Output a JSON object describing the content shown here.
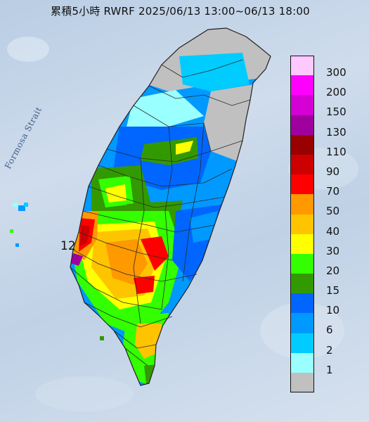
{
  "title": "累積5小時 RWRF 2025/06/13 13:00~06/13 18:00",
  "strait_label": "Formosa Strait",
  "max_marker": "12",
  "legend": [
    {
      "label": "300",
      "color": "#ffc8ff"
    },
    {
      "label": "200",
      "color": "#ff00ff"
    },
    {
      "label": "150",
      "color": "#d400d4"
    },
    {
      "label": "130",
      "color": "#a0009e"
    },
    {
      "label": "110",
      "color": "#990000"
    },
    {
      "label": "90",
      "color": "#cc0000"
    },
    {
      "label": "70",
      "color": "#ff0000"
    },
    {
      "label": "50",
      "color": "#ff9900"
    },
    {
      "label": "40",
      "color": "#ffc400"
    },
    {
      "label": "30",
      "color": "#ffff00"
    },
    {
      "label": "20",
      "color": "#33ff00"
    },
    {
      "label": "15",
      "color": "#339900"
    },
    {
      "label": "10",
      "color": "#0066ff"
    },
    {
      "label": "6",
      "color": "#0099ff"
    },
    {
      "label": "2",
      "color": "#00ccff"
    },
    {
      "label": "1",
      "color": "#99ffff"
    },
    {
      "label": "",
      "color": "#c0c0c0"
    }
  ]
}
